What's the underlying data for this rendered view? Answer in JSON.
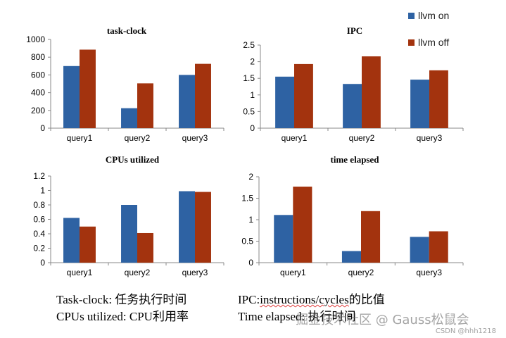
{
  "colors": {
    "series_on": "#2e62a3",
    "series_off": "#a3330e",
    "axis": "#888888"
  },
  "legend": [
    {
      "label": "llvm on",
      "color": "#2e62a3"
    },
    {
      "label": "llvm off",
      "color": "#a3330e"
    }
  ],
  "chart_data": [
    {
      "type": "bar",
      "title": "task-clock",
      "categories": [
        "query1",
        "query2",
        "query3"
      ],
      "series": [
        {
          "name": "llvm on",
          "values": [
            700,
            225,
            600
          ]
        },
        {
          "name": "llvm off",
          "values": [
            885,
            505,
            725
          ]
        }
      ],
      "ylim": [
        0,
        1000
      ],
      "yticks": [
        0,
        200,
        400,
        600,
        800,
        1000
      ],
      "ytick_labels": [
        "0",
        "200",
        "400",
        "600",
        "800",
        "1000"
      ]
    },
    {
      "type": "bar",
      "title": "IPC",
      "categories": [
        "query1",
        "query2",
        "query3"
      ],
      "series": [
        {
          "name": "llvm on",
          "values": [
            1.55,
            1.33,
            1.46
          ]
        },
        {
          "name": "llvm off",
          "values": [
            1.93,
            2.16,
            1.74
          ]
        }
      ],
      "ylim": [
        0,
        2.5
      ],
      "yticks": [
        0,
        0.5,
        1,
        1.5,
        2,
        2.5
      ],
      "ytick_labels": [
        "0",
        "0.5",
        "1",
        "1.5",
        "2",
        "2.5"
      ]
    },
    {
      "type": "bar",
      "title": "CPUs utilized",
      "categories": [
        "query1",
        "query2",
        "query3"
      ],
      "series": [
        {
          "name": "llvm on",
          "values": [
            0.62,
            0.8,
            0.99
          ]
        },
        {
          "name": "llvm off",
          "values": [
            0.5,
            0.41,
            0.98
          ]
        }
      ],
      "ylim": [
        0,
        1.2
      ],
      "yticks": [
        0,
        0.2,
        0.4,
        0.6,
        0.8,
        1,
        1.2
      ],
      "ytick_labels": [
        "0",
        "0.2",
        "0.4",
        "0.6",
        "0.8",
        "1",
        "1.2"
      ]
    },
    {
      "type": "bar",
      "title": "time elapsed",
      "categories": [
        "query1",
        "query2",
        "query3"
      ],
      "series": [
        {
          "name": "llvm on",
          "values": [
            1.11,
            0.27,
            0.6
          ]
        },
        {
          "name": "llvm off",
          "values": [
            1.77,
            1.2,
            0.73
          ]
        }
      ],
      "ylim": [
        0,
        2
      ],
      "yticks": [
        0,
        0.5,
        1,
        1.5,
        2
      ],
      "ytick_labels": [
        "0",
        "0.5",
        "1",
        "1.5",
        "2"
      ]
    }
  ],
  "notes": {
    "task_clock": "Task-clock: 任务执行时间",
    "ipc_prefix": "IPC:",
    "ipc_term": "instructions/cycles",
    "ipc_suffix": "的比值",
    "cpus_utilized": "CPUs utilized: CPU利用率",
    "time_elapsed": "Time elapsed: 执行时间"
  },
  "watermark": {
    "text": "掘金技术社区 @ Gauss松鼠会",
    "csdn": "CSDN @hhh1218"
  }
}
